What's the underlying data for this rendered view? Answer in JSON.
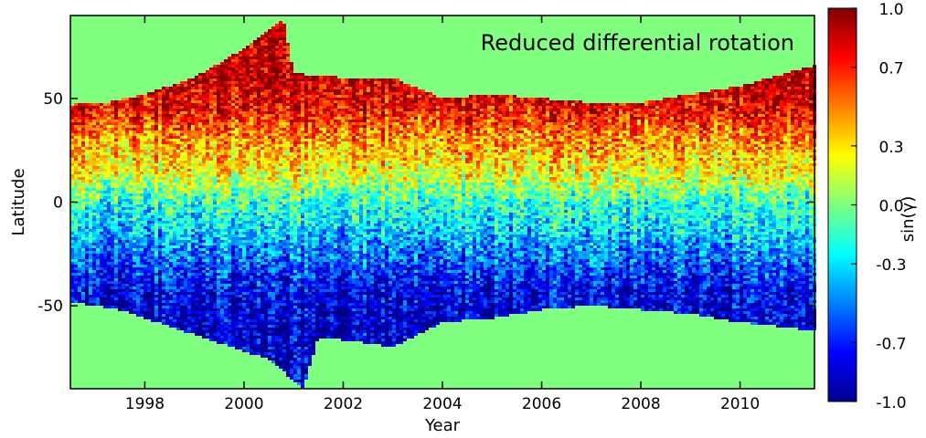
{
  "chart_data": {
    "type": "heatmap",
    "title": "Reduced differential rotation",
    "xlabel": "Year",
    "ylabel": "Latitude",
    "xlim": [
      1996.5,
      2011.5
    ],
    "ylim": [
      -90,
      90
    ],
    "x_ticks": [
      1998,
      2000,
      2002,
      2004,
      2006,
      2008,
      2010
    ],
    "x_tick_labels": [
      "1998",
      "2000",
      "2002",
      "2004",
      "2006",
      "2008",
      "2010"
    ],
    "y_ticks": [
      50,
      0,
      -50
    ],
    "y_tick_labels": [
      "50",
      "0",
      "-50"
    ],
    "colorbar": {
      "label": "sin(γ)",
      "range": [
        -1.0,
        1.0
      ],
      "ticks": [
        1.0,
        0.7,
        0.3,
        0.0,
        -0.3,
        -0.7,
        -1.0
      ],
      "tick_labels": [
        "1.0",
        "0.7",
        "0.3",
        "0.0",
        "-0.3",
        "-0.7",
        "-1.0"
      ],
      "colormap": "jet"
    },
    "background_value": 0.0,
    "band_boundary_north": [
      {
        "year": 1996.5,
        "lat": 47
      },
      {
        "year": 1997.2,
        "lat": 48
      },
      {
        "year": 1998.0,
        "lat": 52
      },
      {
        "year": 1999.0,
        "lat": 60
      },
      {
        "year": 2000.0,
        "lat": 74
      },
      {
        "year": 2000.8,
        "lat": 88
      },
      {
        "year": 2001.0,
        "lat": 62
      },
      {
        "year": 2002.0,
        "lat": 60
      },
      {
        "year": 2003.0,
        "lat": 60
      },
      {
        "year": 2004.0,
        "lat": 50
      },
      {
        "year": 2005.0,
        "lat": 52
      },
      {
        "year": 2006.0,
        "lat": 50
      },
      {
        "year": 2007.0,
        "lat": 48
      },
      {
        "year": 2008.0,
        "lat": 48
      },
      {
        "year": 2009.0,
        "lat": 52
      },
      {
        "year": 2010.0,
        "lat": 56
      },
      {
        "year": 2011.5,
        "lat": 66
      }
    ],
    "band_boundary_south": [
      {
        "year": 1996.5,
        "lat": -48
      },
      {
        "year": 1997.5,
        "lat": -52
      },
      {
        "year": 1998.5,
        "lat": -60
      },
      {
        "year": 1999.5,
        "lat": -68
      },
      {
        "year": 2000.5,
        "lat": -76
      },
      {
        "year": 2001.2,
        "lat": -90
      },
      {
        "year": 2001.5,
        "lat": -65
      },
      {
        "year": 2002.5,
        "lat": -68
      },
      {
        "year": 2003.0,
        "lat": -70
      },
      {
        "year": 2004.0,
        "lat": -58
      },
      {
        "year": 2005.0,
        "lat": -56
      },
      {
        "year": 2006.0,
        "lat": -52
      },
      {
        "year": 2007.0,
        "lat": -50
      },
      {
        "year": 2008.0,
        "lat": -52
      },
      {
        "year": 2009.0,
        "lat": -54
      },
      {
        "year": 2010.0,
        "lat": -58
      },
      {
        "year": 2011.5,
        "lat": -62
      }
    ],
    "latitude_profile": [
      {
        "lat": 60,
        "value": 0.9
      },
      {
        "lat": 45,
        "value": 0.75
      },
      {
        "lat": 30,
        "value": 0.45
      },
      {
        "lat": 15,
        "value": 0.25
      },
      {
        "lat": 0,
        "value": -0.15
      },
      {
        "lat": -15,
        "value": -0.35
      },
      {
        "lat": -30,
        "value": -0.6
      },
      {
        "lat": -45,
        "value": -0.8
      },
      {
        "lat": -60,
        "value": -0.85
      }
    ]
  }
}
